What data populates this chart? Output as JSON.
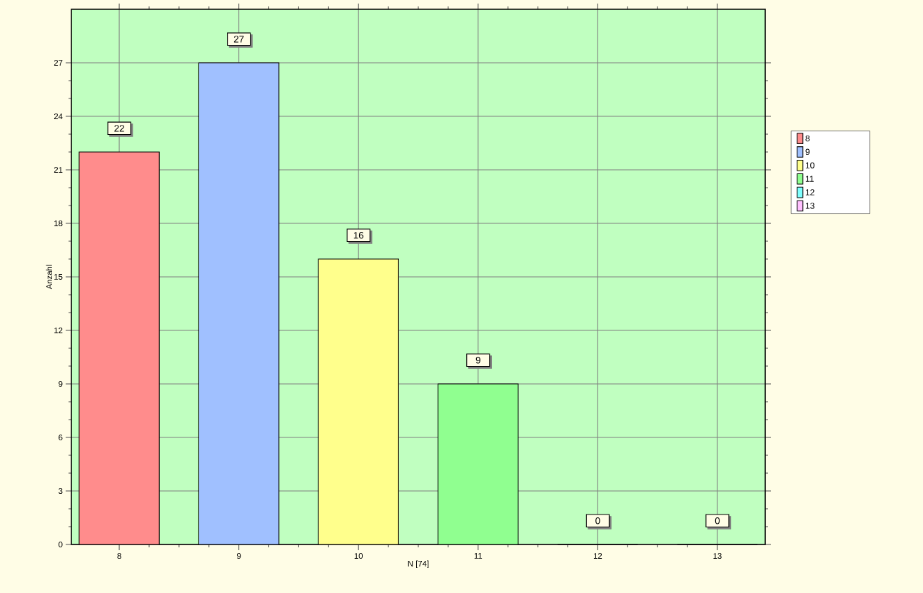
{
  "chart_data": {
    "type": "bar",
    "xlabel": "N [74]",
    "ylabel": "Anzahl",
    "categories": [
      "8",
      "9",
      "10",
      "11",
      "12",
      "13"
    ],
    "series": [
      {
        "name": "8",
        "color": "#ff8c8c",
        "values": [
          22,
          null,
          null,
          null,
          null,
          null
        ]
      },
      {
        "name": "9",
        "color": "#a0c0ff",
        "values": [
          null,
          27,
          null,
          null,
          null,
          null
        ]
      },
      {
        "name": "10",
        "color": "#ffff8c",
        "values": [
          null,
          null,
          16,
          null,
          null,
          null
        ]
      },
      {
        "name": "11",
        "color": "#90ff90",
        "values": [
          null,
          null,
          null,
          9,
          null,
          null
        ]
      },
      {
        "name": "12",
        "color": "#80ffff",
        "values": [
          null,
          null,
          null,
          null,
          0,
          null
        ]
      },
      {
        "name": "13",
        "color": "#ffc0ff",
        "values": [
          null,
          null,
          null,
          null,
          null,
          0
        ]
      }
    ],
    "ylim": [
      0,
      30
    ],
    "yticks": [
      0,
      3,
      6,
      9,
      12,
      15,
      18,
      21,
      24,
      27
    ],
    "grid": true,
    "legend": "right",
    "data_labels": true
  }
}
